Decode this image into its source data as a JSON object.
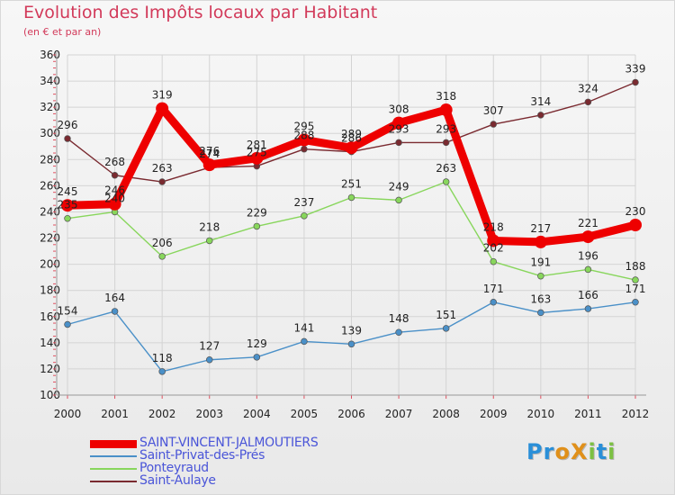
{
  "header": {
    "title": "Evolution des Impôts locaux par Habitant",
    "subtitle": "(en € et par an)"
  },
  "logo": {
    "text": "ProXiti",
    "colors": [
      "#2a8fd8",
      "#2a8fd8",
      "#e0901a",
      "#e0901a",
      "#7cc043",
      "#2a8fd8",
      "#7cc043"
    ]
  },
  "colors": {
    "title": "#d23a5a",
    "tick_marks": "#e05060",
    "grid": "#d4d4d4",
    "legend_text": "#4a55d8"
  },
  "chart_data": {
    "type": "line",
    "title": "Evolution des Impôts locaux par Habitant",
    "subtitle": "(en € et par an)",
    "x": [
      "2000",
      "2001",
      "2002",
      "2003",
      "2004",
      "2005",
      "2006",
      "2007",
      "2008",
      "2009",
      "2010",
      "2011",
      "2012"
    ],
    "ylim": [
      100,
      360
    ],
    "yticks": [
      100,
      120,
      140,
      160,
      180,
      200,
      220,
      240,
      260,
      280,
      300,
      320,
      340,
      360
    ],
    "grid": true,
    "legend_position": "bottom",
    "series": [
      {
        "name": "SAINT-VINCENT-JALMOUTIERS",
        "values": [
          245,
          246,
          319,
          276,
          281,
          295,
          289,
          308,
          318,
          218,
          217,
          221,
          230
        ],
        "labels": [
          "245",
          "246",
          "319",
          "276",
          "281",
          "295",
          "289",
          "308",
          "318",
          "218",
          "217",
          "221",
          "230"
        ],
        "color": "#ee0000",
        "style": "thick"
      },
      {
        "name": "Saint-Privat-des-Prés",
        "values": [
          154,
          164,
          118,
          127,
          129,
          141,
          139,
          148,
          151,
          171,
          163,
          166,
          171
        ],
        "labels": [
          "154",
          "164",
          "118",
          "127",
          "129",
          "141",
          "139",
          "148",
          "151",
          "171",
          "163",
          "166",
          "171"
        ],
        "color": "#4a90c8",
        "style": "thin"
      },
      {
        "name": "Ponteyraud",
        "values": [
          235,
          240,
          206,
          218,
          229,
          237,
          251,
          249,
          263,
          202,
          191,
          196,
          188
        ],
        "labels": [
          "235",
          "240",
          "206",
          "218",
          "229",
          "237",
          "251",
          "249",
          "263",
          "202",
          "191",
          "196",
          "188"
        ],
        "color": "#88d65c",
        "style": "thin"
      },
      {
        "name": "Saint-Aulaye",
        "values": [
          296,
          268,
          263,
          274,
          275,
          288,
          286,
          293,
          293,
          307,
          314,
          324,
          339
        ],
        "labels": [
          "296",
          "268",
          "263",
          "274",
          "275",
          "288",
          "286",
          "293",
          "293",
          "307",
          "314",
          "324",
          "339"
        ],
        "color": "#7a2a30",
        "style": "thin"
      }
    ]
  }
}
